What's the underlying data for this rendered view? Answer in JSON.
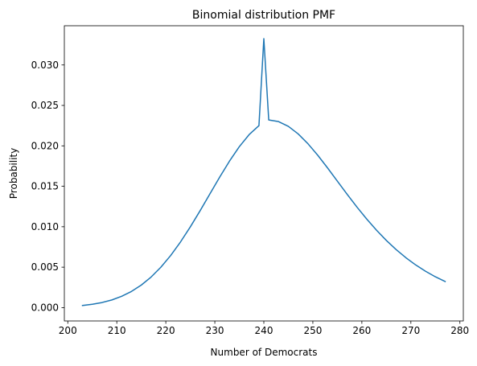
{
  "chart_data": {
    "type": "line",
    "title": "Binomial distribution PMF",
    "xlabel": "Number of Democrats",
    "ylabel": "Probability",
    "xlim": [
      199.3,
      280.7
    ],
    "ylim": [
      -0.00165,
      0.03485
    ],
    "xticks": [
      200,
      210,
      220,
      230,
      240,
      250,
      260,
      270,
      280
    ],
    "yticks": [
      0.0,
      0.005,
      0.01,
      0.015,
      0.02,
      0.025,
      0.03
    ],
    "xtick_labels": [
      "200",
      "210",
      "220",
      "230",
      "240",
      "250",
      "260",
      "270",
      "280"
    ],
    "ytick_labels": [
      "0.000",
      "0.005",
      "0.010",
      "0.015",
      "0.020",
      "0.025",
      "0.030"
    ],
    "grid": false,
    "series": [
      {
        "color": "#1f77b4",
        "x": [
          203,
          205,
          207,
          209,
          211,
          213,
          215,
          217,
          219,
          221,
          223,
          225,
          227,
          229,
          231,
          233,
          235,
          237,
          239,
          240,
          241,
          243,
          245,
          247,
          249,
          251,
          253,
          255,
          257,
          259,
          261,
          263,
          265,
          267,
          269,
          271,
          273,
          275,
          277
        ],
        "y": [
          0.00026,
          0.00041,
          0.00063,
          0.00095,
          0.0014,
          0.002,
          0.00279,
          0.00378,
          0.005,
          0.00645,
          0.00812,
          0.00998,
          0.01198,
          0.01406,
          0.01614,
          0.01812,
          0.0199,
          0.02139,
          0.0225,
          0.03326,
          0.0232,
          0.023,
          0.02241,
          0.02148,
          0.02026,
          0.01884,
          0.01727,
          0.01564,
          0.01401,
          0.01243,
          0.01094,
          0.00956,
          0.0083,
          0.00717,
          0.00616,
          0.00527,
          0.00449,
          0.00381,
          0.00322
        ]
      }
    ]
  }
}
